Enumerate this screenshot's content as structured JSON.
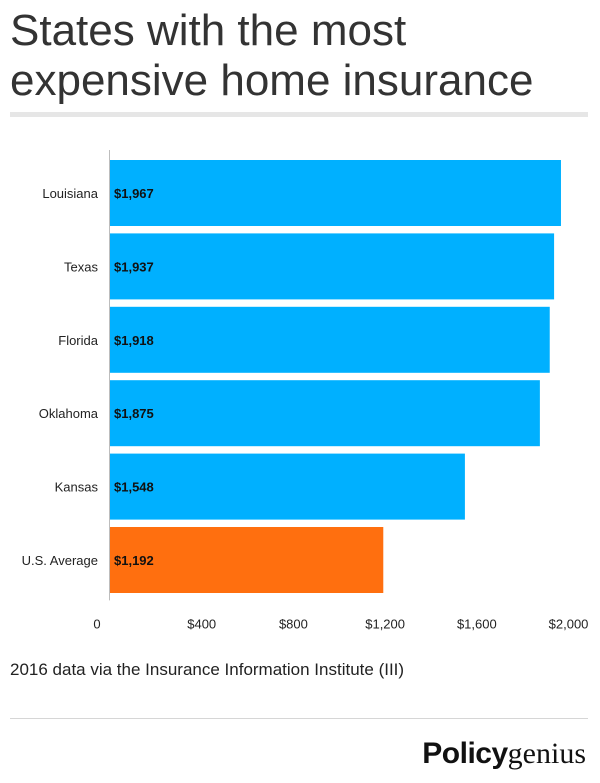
{
  "title": "States with the most expensive home insurance",
  "source": "2016 data via the Insurance Information Institute (III)",
  "logo": {
    "part1": "Policy",
    "part2": "genius"
  },
  "colors": {
    "bar": "#00b0ff",
    "highlight": "#ff6f0f",
    "axis": "#bdbdbd"
  },
  "chart_data": {
    "type": "bar",
    "orientation": "horizontal",
    "title": "States with the most expensive home insurance",
    "categories": [
      "Louisiana",
      "Texas",
      "Florida",
      "Oklahoma",
      "Kansas",
      "U.S. Average"
    ],
    "values": [
      1967,
      1937,
      1918,
      1875,
      1548,
      1192
    ],
    "value_labels": [
      "$1,967",
      "$1,937",
      "$1,918",
      "$1,875",
      "$1,548",
      "$1,192"
    ],
    "highlight_category": "U.S. Average",
    "xlim": [
      0,
      2050
    ],
    "xticks": [
      0,
      400,
      800,
      1200,
      1600,
      2000
    ],
    "xtick_labels": [
      "0",
      "$400",
      "$800",
      "$1,200",
      "$1,600",
      "$2,000"
    ],
    "grid": false,
    "legend": "none"
  }
}
